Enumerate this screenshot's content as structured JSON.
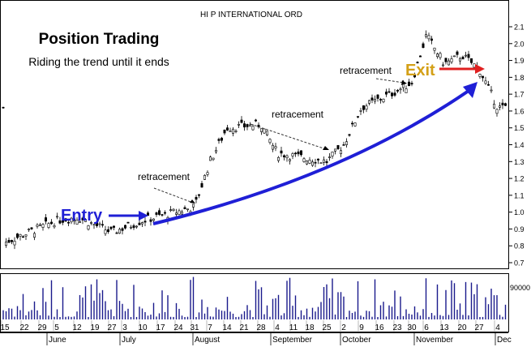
{
  "chart_data": {
    "type": "candlestick",
    "title": "HI P INTERNATIONAL ORD",
    "heading": "Position Trading",
    "subheading": "Riding the trend until it ends",
    "annotations": {
      "entry": "Entry",
      "exit": "Exit",
      "retracement_1": "retracement",
      "retracement_2": "retracement",
      "retracement_3": "retracement"
    },
    "y_axis": {
      "ticks": [
        "2.1",
        "2.0",
        "1.9",
        "1.8",
        "1.7",
        "1.6",
        "1.5",
        "1.4",
        "1.3",
        "1.2",
        "1.1",
        "1.0",
        "0.9",
        "0.8",
        "0.7"
      ],
      "ylim": [
        0.65,
        2.15
      ]
    },
    "volume_axis": {
      "tick_label": "90000"
    },
    "x_axis": {
      "day_ticks": [
        "15",
        "22",
        "29",
        "5",
        "12",
        "19",
        "27",
        "3",
        "10",
        "17",
        "24",
        "31",
        "7",
        "14",
        "21",
        "28",
        "4",
        "11",
        "18",
        "25",
        "2",
        "9",
        "16",
        "23",
        "30",
        "6",
        "13",
        "20",
        "27",
        "4"
      ],
      "month_labels": [
        "June",
        "July",
        "August",
        "September",
        "October",
        "November",
        "Dec"
      ]
    },
    "price_waypoints": [
      {
        "date": "May 15",
        "close": 0.82
      },
      {
        "date": "June 5",
        "close": 0.95
      },
      {
        "date": "June 12",
        "close": 0.97
      },
      {
        "date": "June 27",
        "close": 0.88
      },
      {
        "date": "July 17",
        "close": 0.95
      },
      {
        "date": "July 31",
        "close": 1.03
      },
      {
        "date": "August 7",
        "close": 1.3
      },
      {
        "date": "August 14",
        "close": 1.5
      },
      {
        "date": "August 28",
        "close": 1.52
      },
      {
        "date": "September 4",
        "close": 1.35
      },
      {
        "date": "September 25",
        "close": 1.3
      },
      {
        "date": "October 2",
        "close": 1.4
      },
      {
        "date": "October 9",
        "close": 1.62
      },
      {
        "date": "October 23",
        "close": 1.72
      },
      {
        "date": "October 30",
        "close": 1.77
      },
      {
        "date": "November 6",
        "close": 2.05
      },
      {
        "date": "November 13",
        "close": 1.88
      },
      {
        "date": "November 20",
        "close": 1.93
      },
      {
        "date": "November 27",
        "close": 1.85
      },
      {
        "date": "December 4",
        "close": 1.62
      }
    ],
    "entry_point": {
      "date": "July 17",
      "price": 0.95
    },
    "exit_point": {
      "date": "November 27",
      "price": 1.84
    },
    "colors": {
      "trend_arrow": "#1f1fd6",
      "entry": "#1f1fd6",
      "exit_text": "#d4a017",
      "exit_arrow": "#e02020",
      "candles": "#000000",
      "grid": "#c8c8c8"
    }
  }
}
